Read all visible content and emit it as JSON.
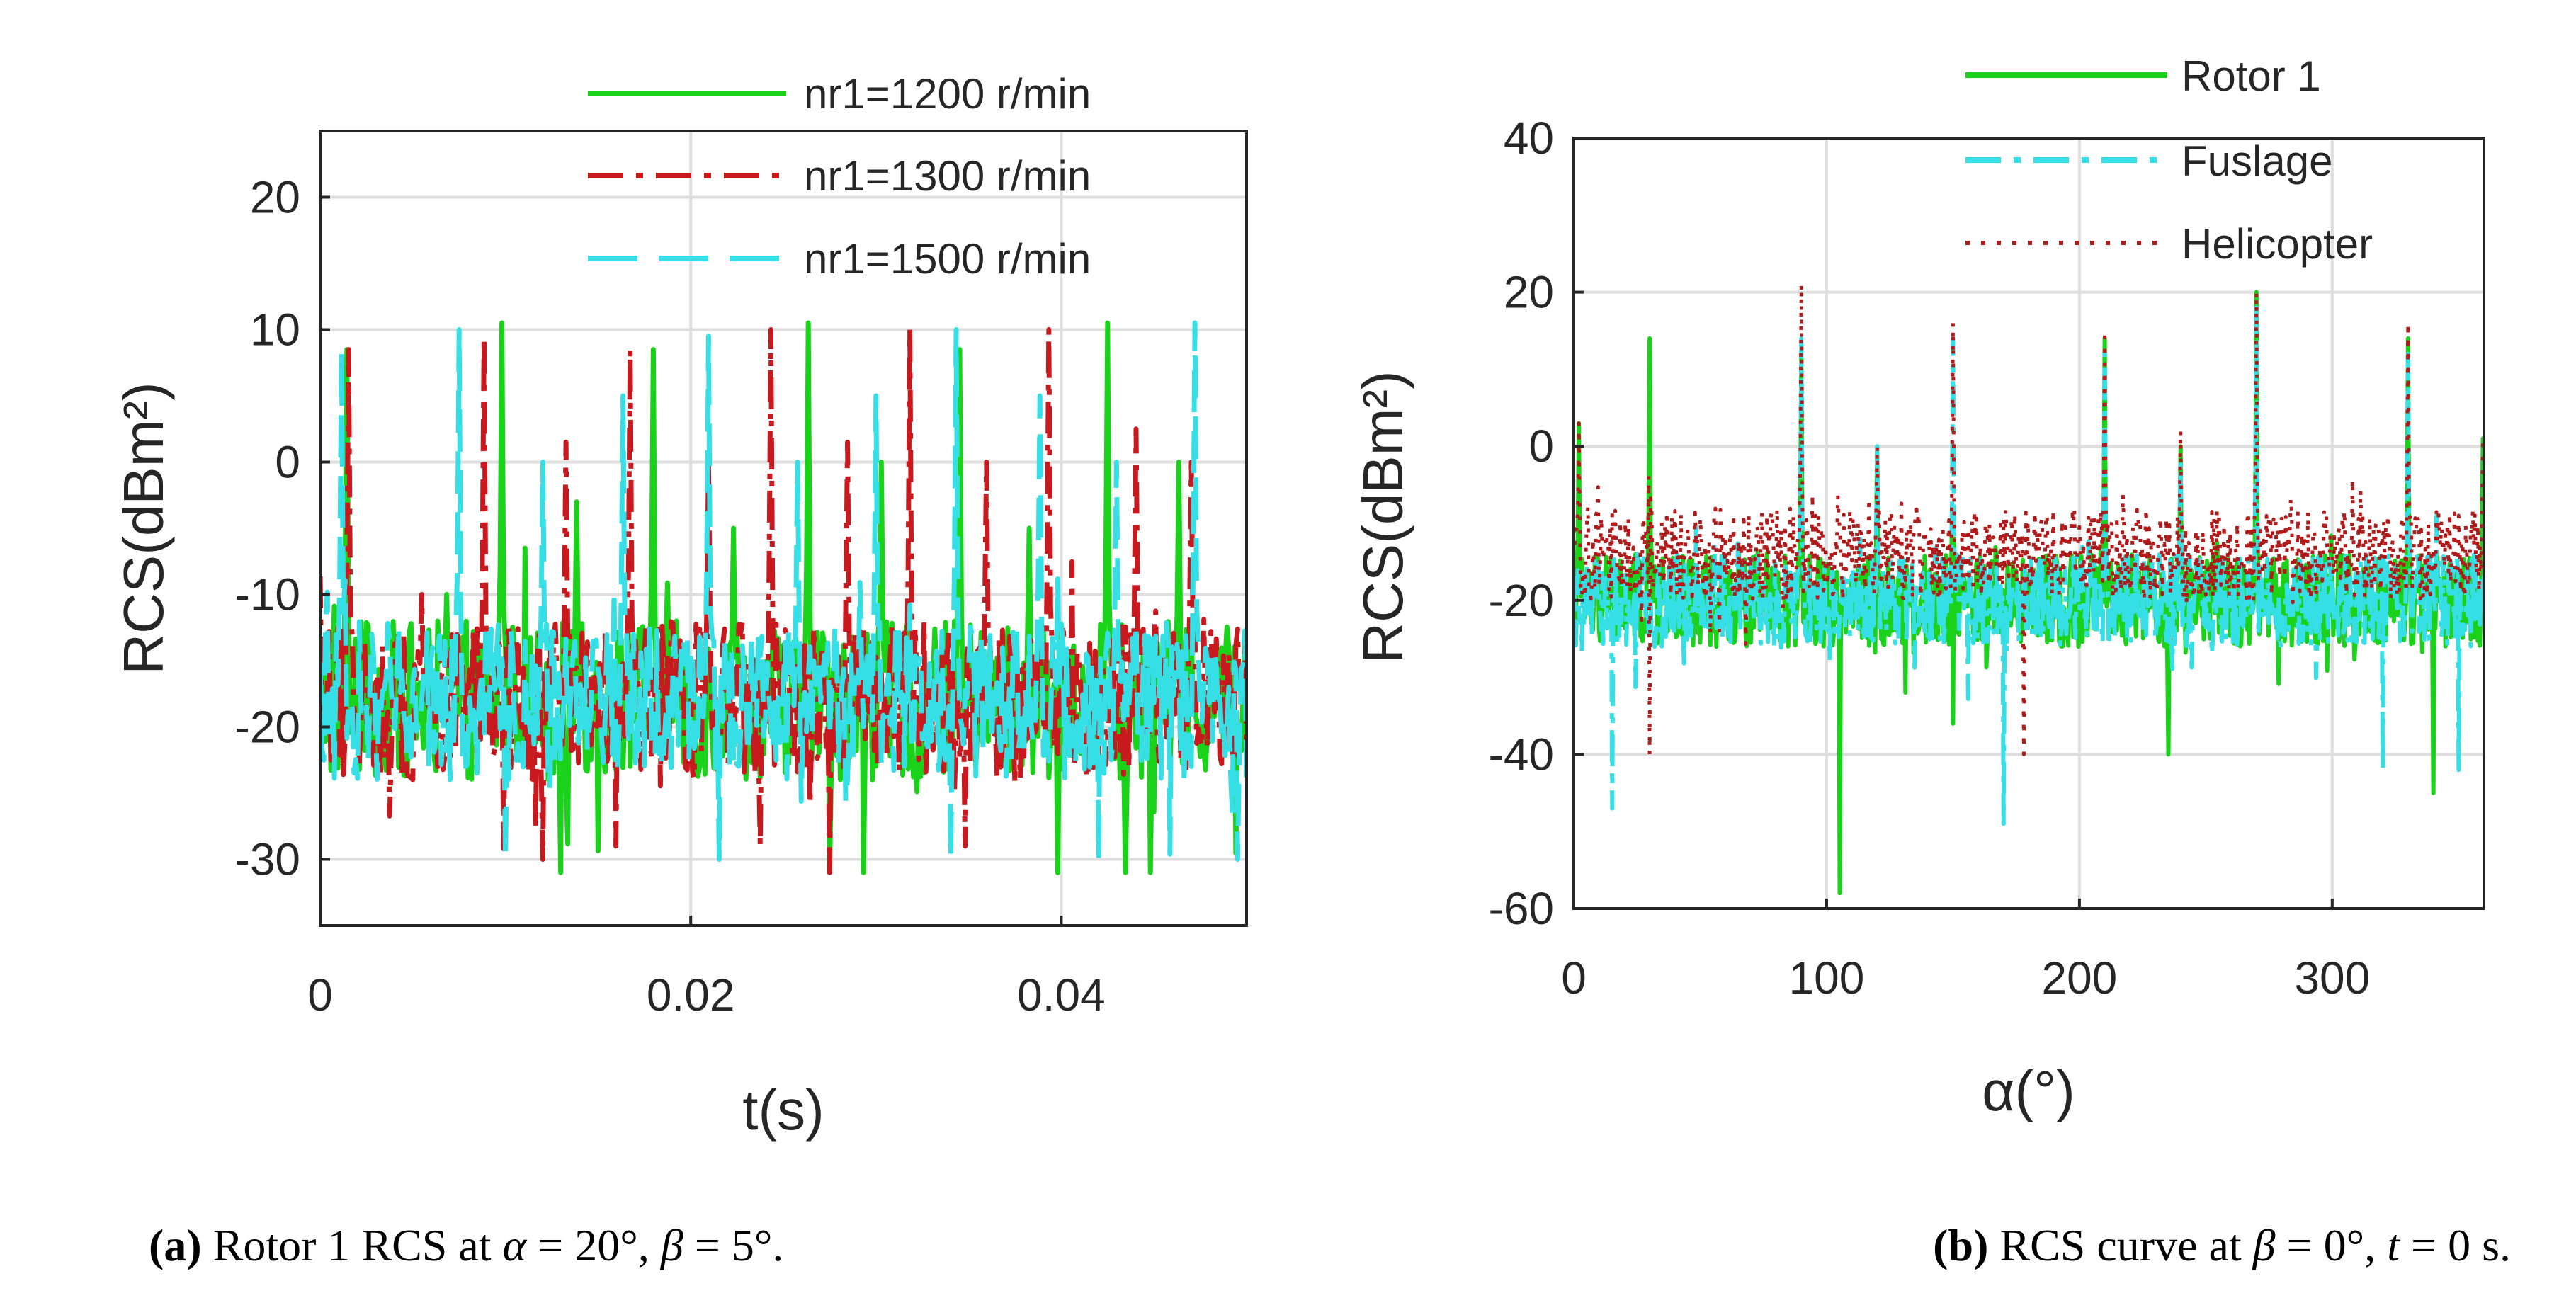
{
  "colors": {
    "green": "#19d219",
    "cyan": "#36dfe6",
    "red": "#c8191e",
    "dark_red": "#b11a1a",
    "axis": "#262626",
    "grid": "#dedede"
  },
  "chart_data": [
    {
      "type": "line",
      "xlabel": "t(s)",
      "ylabel": "RCS(dBm²)",
      "xlim": [
        0,
        0.05
      ],
      "ylim": [
        -35,
        25
      ],
      "xticks": [
        0,
        0.02,
        0.04
      ],
      "yticks": [
        -30,
        -20,
        -10,
        0,
        10,
        20
      ],
      "x_tick_labels": [
        "0",
        "0.02",
        "0.04"
      ],
      "y_tick_labels": [
        "-30",
        "-20",
        "-10",
        "0",
        "10",
        "20"
      ],
      "grid": true,
      "legend_position": "top-right",
      "series": [
        {
          "name": "nr1=1200 r/min",
          "style": "solid",
          "color": "#19d219",
          "baseline": -18,
          "peaks": [
            [
              0.0014,
              8.5
            ],
            [
              0.0068,
              -10
            ],
            [
              0.0098,
              10.5
            ],
            [
              0.0138,
              -3
            ],
            [
              0.018,
              8.5
            ],
            [
              0.0223,
              -5
            ],
            [
              0.0263,
              10.5
            ],
            [
              0.0303,
              0
            ],
            [
              0.0345,
              8.5
            ],
            [
              0.0383,
              -5
            ],
            [
              0.0425,
              10.5
            ],
            [
              0.0463,
              0
            ]
          ],
          "dips": [
            [
              0.013,
              -31
            ],
            [
              0.0275,
              -31
            ],
            [
              0.0293,
              -31
            ],
            [
              0.0398,
              -31
            ],
            [
              0.0435,
              -31
            ],
            [
              0.0448,
              -31
            ]
          ]
        },
        {
          "name": "nr1=1300 r/min",
          "style": "dashdot",
          "color": "#c8191e",
          "baseline": -18,
          "peaks": [
            [
              0.0015,
              8.5
            ],
            [
              0.0055,
              -10
            ],
            [
              0.0088,
              9.5
            ],
            [
              0.0133,
              1.5
            ],
            [
              0.0167,
              8.5
            ],
            [
              0.021,
              0
            ],
            [
              0.0243,
              10
            ],
            [
              0.0285,
              1.5
            ],
            [
              0.0318,
              10
            ],
            [
              0.036,
              0
            ],
            [
              0.0393,
              10
            ],
            [
              0.044,
              2.5
            ],
            [
              0.047,
              0
            ]
          ],
          "dips": [
            [
              0.012,
              -30
            ],
            [
              0.016,
              -29
            ],
            [
              0.0275,
              -31
            ],
            [
              0.0348,
              -29
            ]
          ]
        },
        {
          "name": "nr1=1500 r/min",
          "style": "dash",
          "color": "#36dfe6",
          "baseline": -18,
          "peaks": [
            [
              0.0012,
              8.5
            ],
            [
              0.0075,
              10
            ],
            [
              0.012,
              0
            ],
            [
              0.0163,
              5
            ],
            [
              0.021,
              9.5
            ],
            [
              0.0258,
              0
            ],
            [
              0.03,
              5
            ],
            [
              0.0343,
              10
            ],
            [
              0.0388,
              5
            ],
            [
              0.043,
              0
            ],
            [
              0.0472,
              10.5
            ]
          ],
          "dips": [
            [
              0.01,
              -30
            ],
            [
              0.0215,
              -30
            ],
            [
              0.034,
              -30
            ],
            [
              0.042,
              -30
            ],
            [
              0.0495,
              -30
            ]
          ]
        }
      ]
    },
    {
      "type": "line",
      "xlabel": "α(°)",
      "ylabel": "RCS(dBm²)",
      "xlim": [
        0,
        360
      ],
      "ylim": [
        -60,
        40
      ],
      "xticks": [
        0,
        100,
        200,
        300
      ],
      "yticks": [
        -60,
        -40,
        -20,
        0,
        20,
        40
      ],
      "x_tick_labels": [
        "0",
        "100",
        "200",
        "300"
      ],
      "y_tick_labels": [
        "-60",
        "-40",
        "-20",
        "0",
        "20",
        "40"
      ],
      "grid": true,
      "legend_position": "top-right",
      "series": [
        {
          "name": "Rotor 1",
          "style": "solid",
          "color": "#19d219",
          "baseline": -20,
          "peaks": [
            [
              2,
              3
            ],
            [
              30,
              14
            ],
            [
              90,
              12
            ],
            [
              120,
              0
            ],
            [
              150,
              12
            ],
            [
              210,
              14
            ],
            [
              240,
              0
            ],
            [
              270,
              20
            ],
            [
              330,
              14
            ],
            [
              360,
              1
            ]
          ],
          "dips": [
            [
              105,
              -58
            ],
            [
              150,
              -36
            ],
            [
              235,
              -40
            ],
            [
              340,
              -45
            ]
          ]
        },
        {
          "name": "Fuslage",
          "style": "dashdot",
          "color": "#36dfe6",
          "baseline": -20,
          "peaks": [
            [
              90,
              14
            ],
            [
              120,
              0
            ],
            [
              150,
              14
            ],
            [
              210,
              12
            ],
            [
              240,
              -2
            ],
            [
              270,
              18
            ],
            [
              330,
              12
            ]
          ],
          "dips": [
            [
              15,
              -47
            ],
            [
              170,
              -49
            ],
            [
              320,
              -42
            ],
            [
              350,
              -42
            ]
          ]
        },
        {
          "name": "Helicopter",
          "style": "dotted",
          "color": "#b11a1a",
          "baseline": -14,
          "peaks": [
            [
              2,
              3
            ],
            [
              30,
              15
            ],
            [
              90,
              21
            ],
            [
              120,
              0
            ],
            [
              150,
              16
            ],
            [
              210,
              15
            ],
            [
              240,
              2
            ],
            [
              270,
              20
            ],
            [
              330,
              16
            ],
            [
              360,
              1
            ]
          ],
          "dips": [
            [
              30,
              -40
            ],
            [
              178,
              -40
            ]
          ]
        }
      ]
    }
  ],
  "captions": {
    "a_tag": "(a)",
    "a_text_prefix": " Rotor 1 RCS at ",
    "a_alpha": "α",
    "a_alpha_value": " = 20°, ",
    "a_beta": "β",
    "a_beta_value": " = 5°.",
    "b_tag": "(b)",
    "b_text_prefix": " RCS curve at ",
    "b_beta": "β",
    "b_beta_value": " = 0°, ",
    "b_t": "t",
    "b_t_value": " = 0 s."
  }
}
